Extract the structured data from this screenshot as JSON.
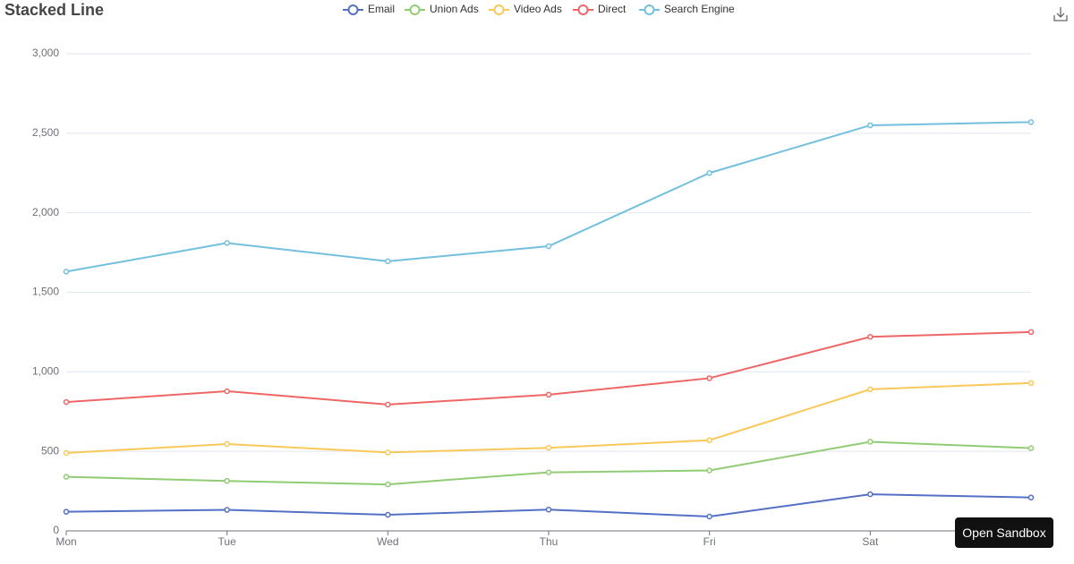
{
  "chart_data": {
    "type": "line",
    "stacked": true,
    "title": "Stacked Line",
    "categories": [
      "Mon",
      "Tue",
      "Wed",
      "Thu",
      "Fri",
      "Sat",
      null
    ],
    "series": [
      {
        "name": "Email",
        "color": "#5470c6",
        "values": [
          120,
          132,
          101,
          134,
          90,
          230,
          210
        ]
      },
      {
        "name": "Union Ads",
        "color": "#91cc75",
        "values": [
          220,
          182,
          191,
          234,
          290,
          330,
          310
        ]
      },
      {
        "name": "Video Ads",
        "color": "#fac858",
        "values": [
          150,
          232,
          201,
          154,
          190,
          330,
          410
        ]
      },
      {
        "name": "Direct",
        "color": "#ee6666",
        "values": [
          320,
          332,
          301,
          334,
          390,
          330,
          320
        ]
      },
      {
        "name": "Search Engine",
        "color": "#73c0de",
        "values": [
          820,
          932,
          901,
          934,
          1290,
          1330,
          1320
        ]
      }
    ],
    "ylim": [
      0,
      3000
    ],
    "yticks": [
      0,
      500,
      {
        "value": 1000,
        "label": "1,000"
      },
      {
        "value": 1500,
        "label": "1,500"
      },
      {
        "value": 2000,
        "label": "2,000"
      },
      {
        "value": 2500,
        "label": "2,500"
      },
      {
        "value": 3000,
        "label": "3,000"
      }
    ],
    "grid": true,
    "legend": "top"
  },
  "ui": {
    "sandbox_button": "Open Sandbox"
  }
}
